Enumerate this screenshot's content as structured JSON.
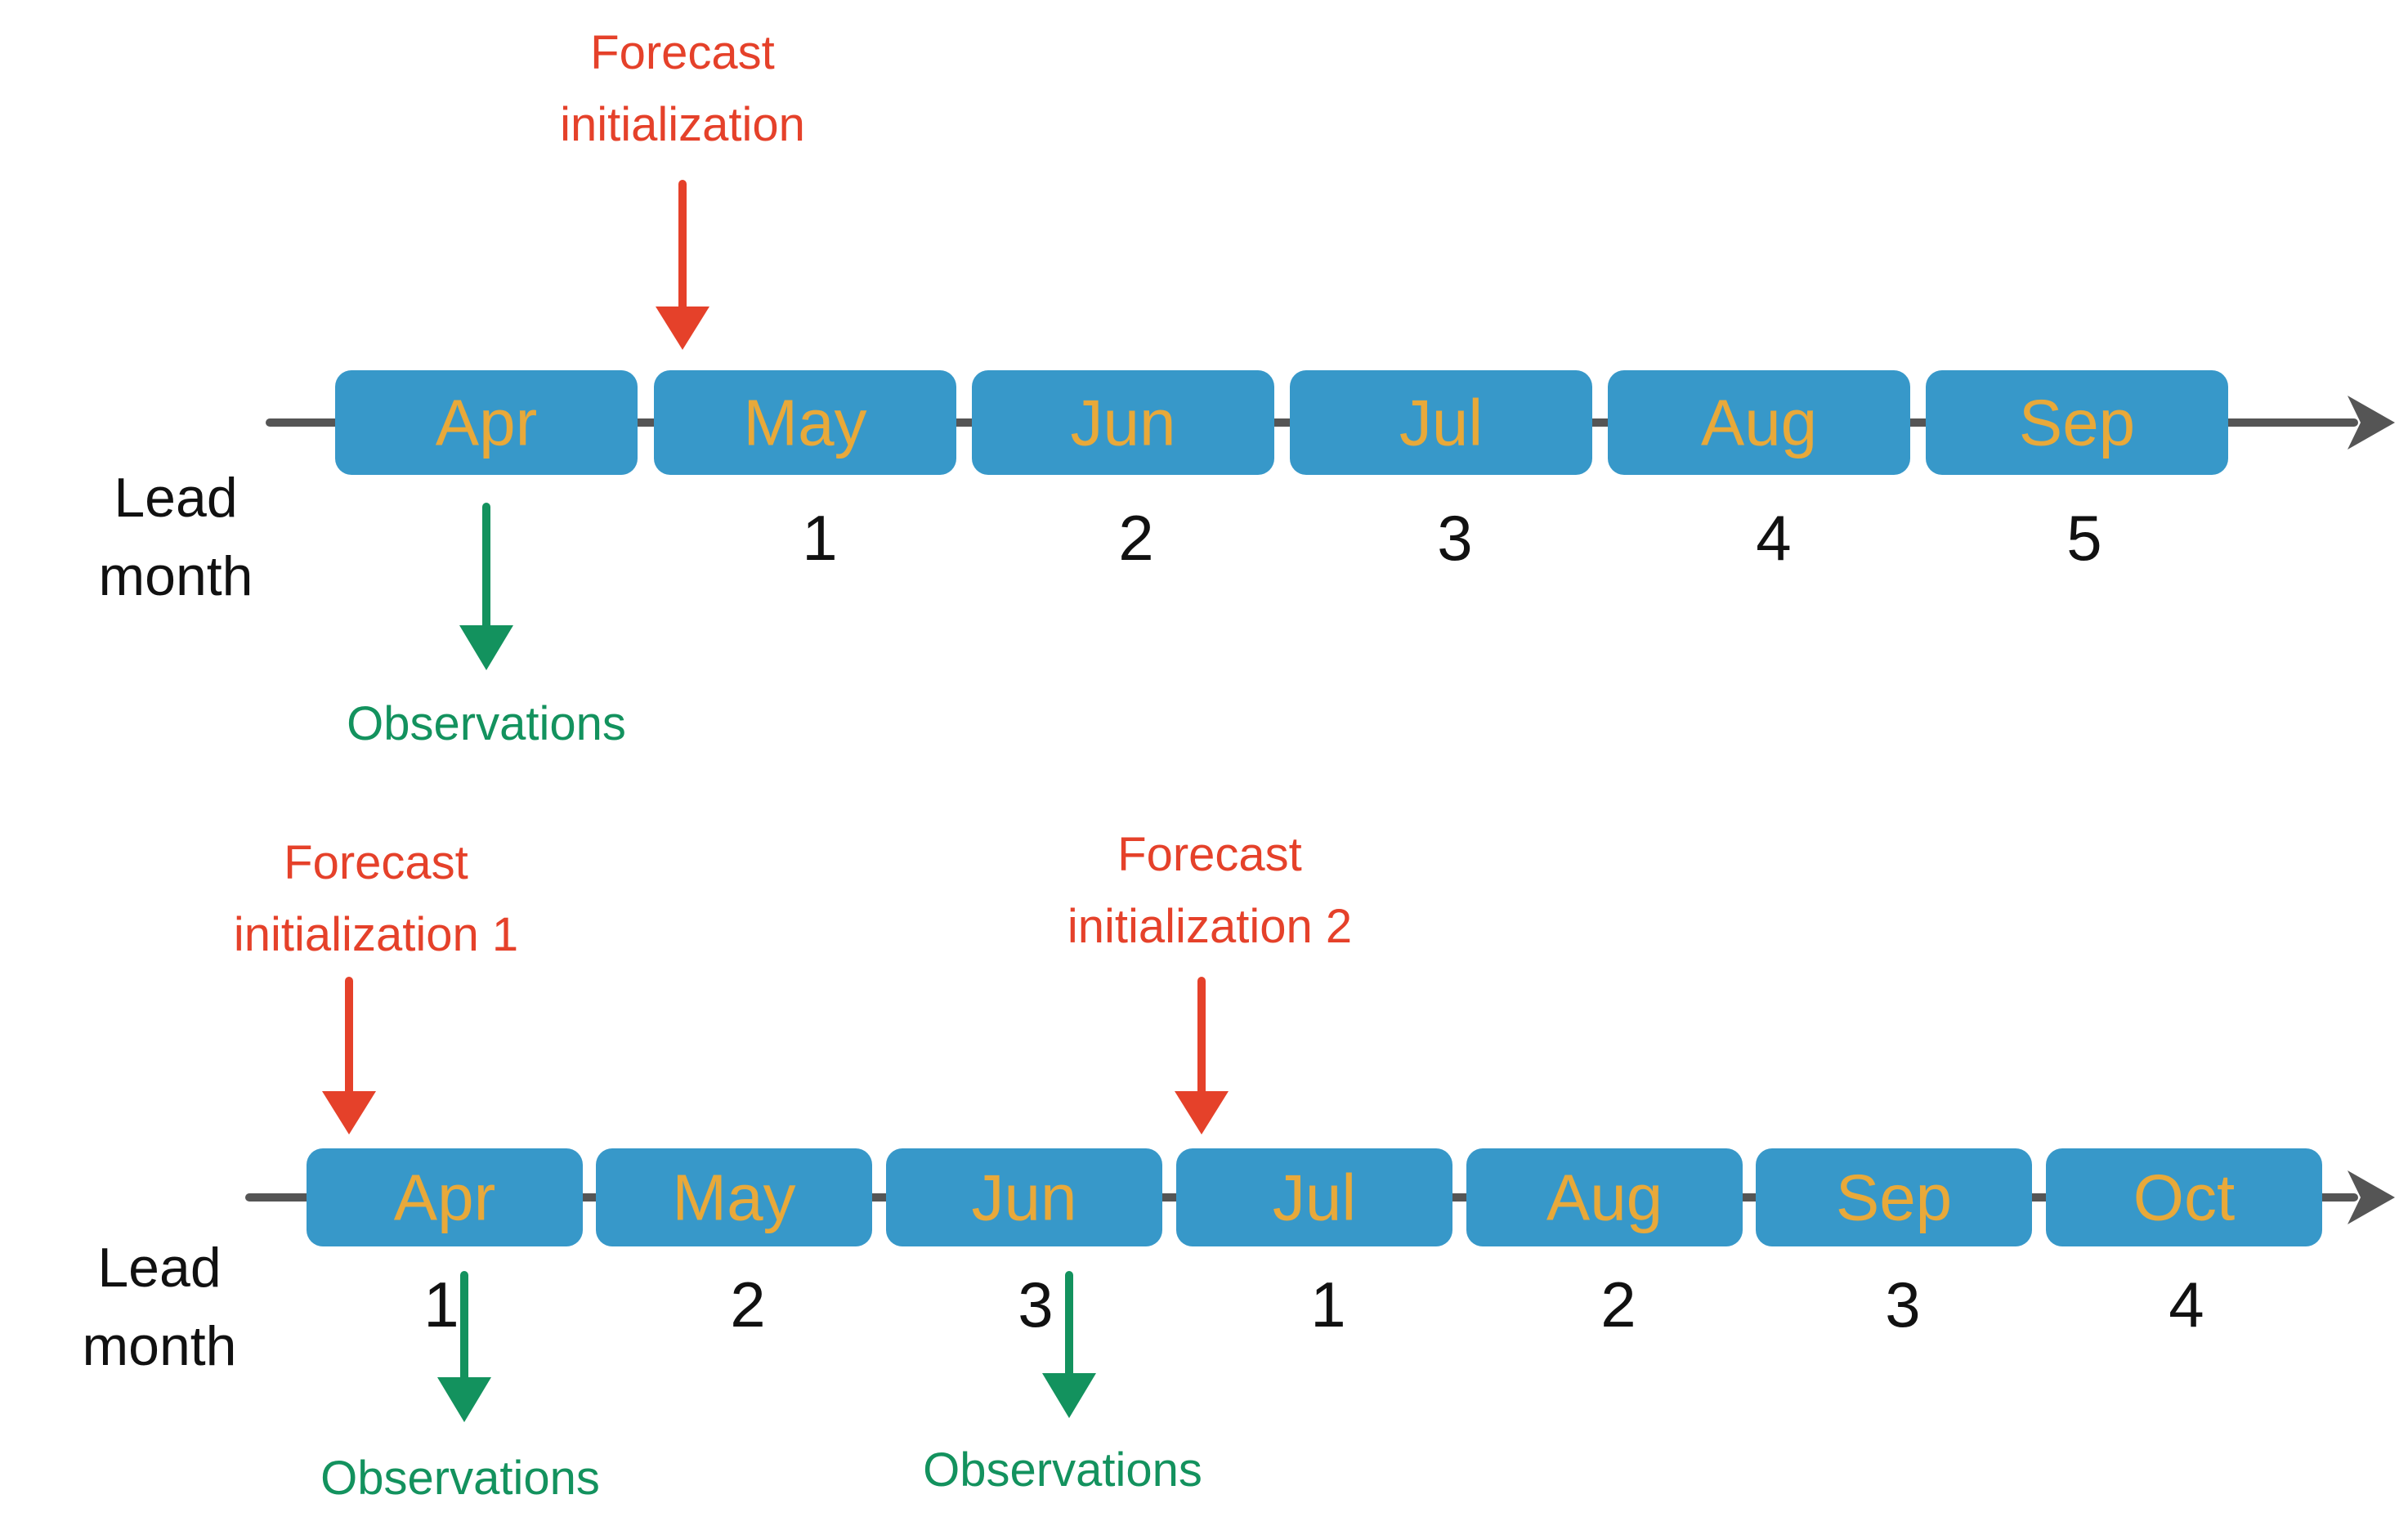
{
  "timelines": [
    {
      "months": [
        "Apr",
        "May",
        "Jun",
        "Jul",
        "Aug",
        "Sep"
      ],
      "lead_numbers": [
        "",
        "1",
        "2",
        "3",
        "4",
        "5"
      ],
      "lead_label_line1": "Lead",
      "lead_label_line2": "month",
      "forecast_labels": [
        {
          "line1": "Forecast",
          "line2": "initialization"
        }
      ],
      "observation_labels": [
        "Observations"
      ]
    },
    {
      "months": [
        "Apr",
        "May",
        "Jun",
        "Jul",
        "Aug",
        "Sep",
        "Oct"
      ],
      "lead_numbers": [
        "1",
        "2",
        "3",
        "1",
        "2",
        "3",
        "4"
      ],
      "lead_label_line1": "Lead",
      "lead_label_line2": "month",
      "forecast_labels": [
        {
          "line1": "Forecast",
          "line2": "initialization 1"
        },
        {
          "line1": "Forecast",
          "line2": "initialization 2"
        }
      ],
      "observation_labels": [
        "Observations",
        "Observations"
      ]
    }
  ],
  "colors": {
    "month_box": "#3798c9",
    "month_text": "#e8a93a",
    "forecast": "#e5412a",
    "observations": "#13925e",
    "axis": "#555555",
    "lead_text": "#111111"
  }
}
